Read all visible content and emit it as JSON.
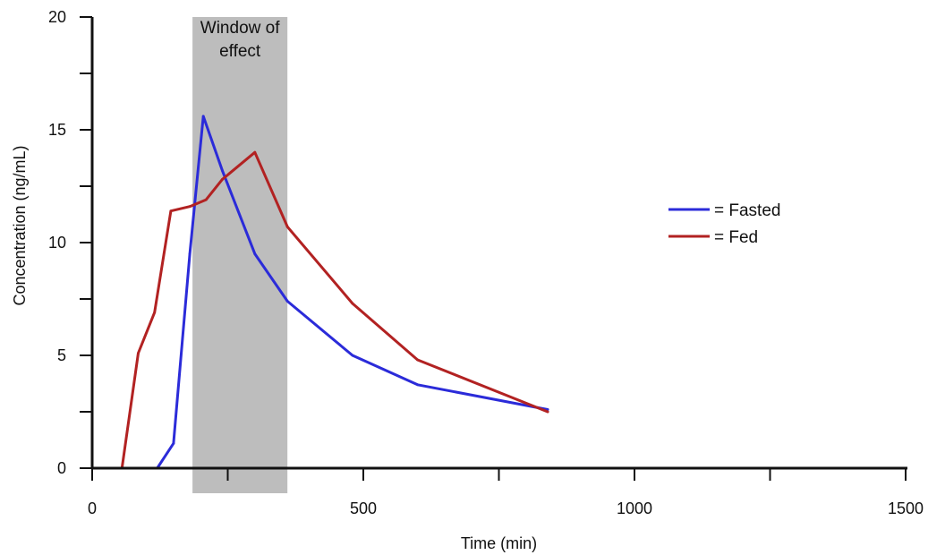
{
  "chart_data": {
    "type": "line",
    "xlabel": "Time (min)",
    "ylabel": "Concentration (ng/mL)",
    "xlim": [
      0,
      1500
    ],
    "ylim": [
      0,
      20
    ],
    "x_ticks": [
      0,
      500,
      1000,
      1500
    ],
    "x_minor_ticks": [
      250,
      750,
      1250
    ],
    "y_ticks": [
      0,
      5,
      10,
      15,
      20
    ],
    "y_minor_ticks": [
      2.5,
      7.5,
      12.5,
      17.5
    ],
    "grid": false,
    "legend_position": "right",
    "shaded_region": {
      "label_line1": "Window of",
      "label_line2": "effect",
      "x_range": [
        185,
        360
      ],
      "color": "#bdbdbd"
    },
    "series": [
      {
        "name": "= Fasted",
        "color": "#2b2bd9",
        "points": [
          [
            0,
            0
          ],
          [
            60,
            0
          ],
          [
            120,
            0
          ],
          [
            150,
            1.1
          ],
          [
            180,
            9.5
          ],
          [
            205,
            15.6
          ],
          [
            240,
            13.2
          ],
          [
            300,
            9.5
          ],
          [
            360,
            7.4
          ],
          [
            480,
            5.0
          ],
          [
            600,
            3.7
          ],
          [
            840,
            2.6
          ]
        ]
      },
      {
        "name": "= Fed",
        "color": "#b22222",
        "points": [
          [
            0,
            0
          ],
          [
            55,
            0
          ],
          [
            85,
            5.1
          ],
          [
            115,
            6.9
          ],
          [
            145,
            11.4
          ],
          [
            180,
            11.6
          ],
          [
            210,
            11.9
          ],
          [
            240,
            12.8
          ],
          [
            300,
            14.0
          ],
          [
            360,
            10.7
          ],
          [
            480,
            7.3
          ],
          [
            600,
            4.8
          ],
          [
            840,
            2.5
          ]
        ]
      }
    ]
  }
}
